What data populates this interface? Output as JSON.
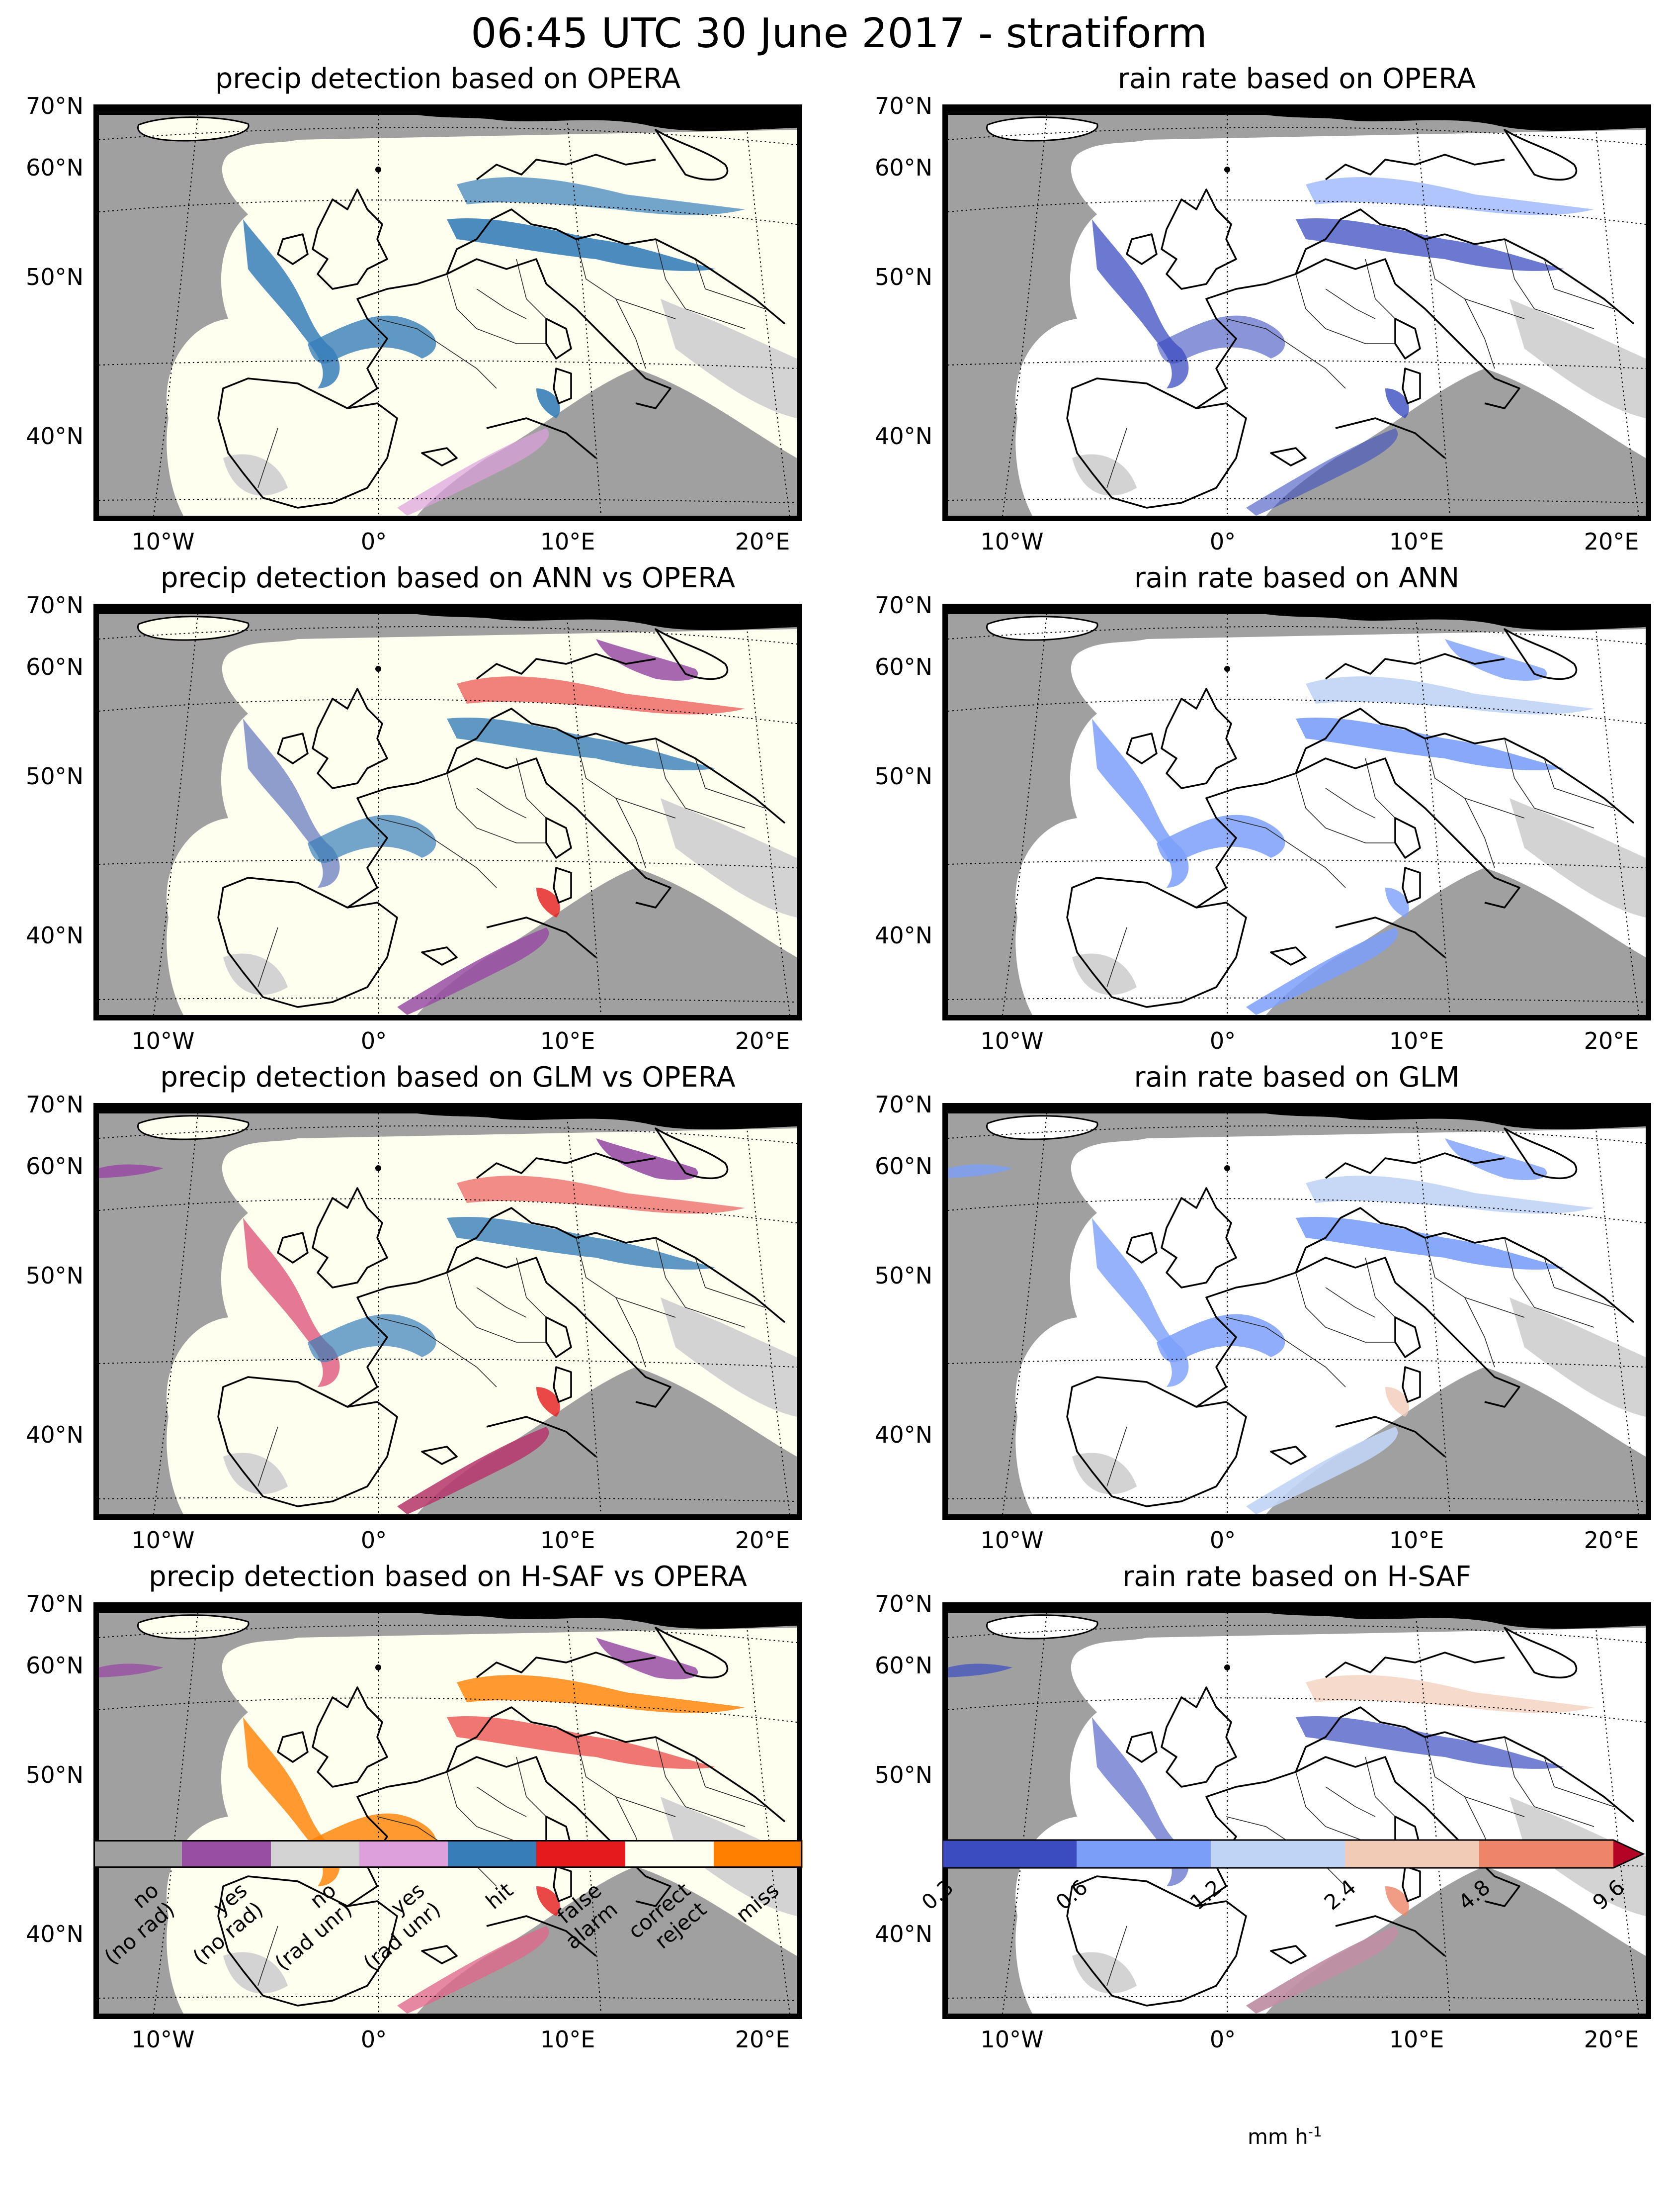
{
  "figure": {
    "title": "06:45 UTC 30 June 2017 - stratiform"
  },
  "axes": {
    "lat_labels": [
      "70°N",
      "60°N",
      "50°N",
      "40°N"
    ],
    "lon_labels": [
      "10°W",
      "0°",
      "10°E",
      "20°E"
    ]
  },
  "panels": [
    {
      "id": "det-opera",
      "title": "precip detection based on OPERA",
      "kind": "detection"
    },
    {
      "id": "rr-opera",
      "title": "rain rate based on OPERA",
      "kind": "rainrate"
    },
    {
      "id": "det-ann",
      "title": "precip detection based on ANN vs OPERA",
      "kind": "detection"
    },
    {
      "id": "rr-ann",
      "title": "rain rate based on ANN",
      "kind": "rainrate"
    },
    {
      "id": "det-glm",
      "title": "precip detection based on GLM vs OPERA",
      "kind": "detection"
    },
    {
      "id": "rr-glm",
      "title": "rain rate based on GLM",
      "kind": "rainrate"
    },
    {
      "id": "det-hsaf",
      "title": "precip detection based on H-SAF vs OPERA",
      "kind": "detection"
    },
    {
      "id": "rr-hsaf",
      "title": "rain rate based on H-SAF",
      "kind": "rainrate"
    }
  ],
  "chart_data": [
    {
      "type": "heatmap",
      "title": "precip detection",
      "legend": "categorical colorbar, bottom-left",
      "categories": [
        {
          "label": "no",
          "sublabel": "(no rad)",
          "color": "#a0a0a0"
        },
        {
          "label": "yes",
          "sublabel": "(no rad)",
          "color": "#984ea3"
        },
        {
          "label": "no",
          "sublabel": "(rad unr)",
          "color": "#d3d3d3"
        },
        {
          "label": "yes",
          "sublabel": "(rad unr)",
          "color": "#dda0dd"
        },
        {
          "label": "hit",
          "sublabel": "",
          "color": "#377eb8"
        },
        {
          "label": "false",
          "sublabel": "alarm",
          "color": "#e41a1c"
        },
        {
          "label": "correct",
          "sublabel": "reject",
          "color": "#fffff0"
        },
        {
          "label": "miss",
          "sublabel": "",
          "color": "#ff7f00"
        }
      ],
      "lat_range": [
        35,
        70
      ],
      "lon_range": [
        -14,
        21
      ]
    },
    {
      "type": "heatmap",
      "title": "rain rate",
      "unit": "mm h",
      "unit_exponent": "-1",
      "legend": "colorbar with extend arrow, bottom-right",
      "boundaries": [
        "0.3",
        "0.6",
        "1.2",
        "2.4",
        "4.8",
        "9.6"
      ],
      "colors": [
        "#3a4cc0",
        "#7b9ff9",
        "#c0d4f5",
        "#f2cbb7",
        "#ee8468",
        "#b40426"
      ],
      "lat_range": [
        35,
        70
      ],
      "lon_range": [
        -14,
        21
      ]
    }
  ]
}
